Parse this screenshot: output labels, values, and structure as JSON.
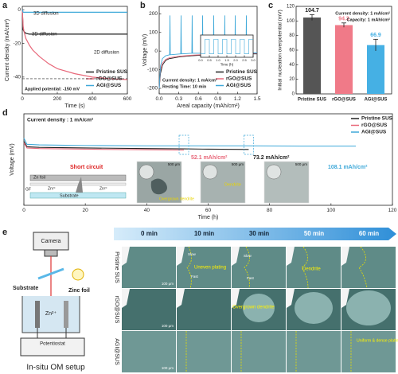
{
  "chart_data": [
    {
      "panel": "a",
      "type": "line",
      "x_label": "Time (s)",
      "y_label": "Current density (mA/cm²)",
      "x": [
        0,
        5,
        10,
        20,
        40,
        60,
        100,
        150,
        200,
        300,
        400,
        500,
        600
      ],
      "series": [
        {
          "name": "Pristine SUS",
          "color": "#222222",
          "values": [
            0,
            -12,
            -13,
            -14,
            -14.5,
            -14.5,
            -14.5,
            -14.5,
            -14.5,
            -14.5,
            -14.5,
            -14.5,
            -14.5
          ]
        },
        {
          "name": "rGO@SUS",
          "color": "#e8687a",
          "values": [
            0,
            -10,
            -13,
            -17,
            -21,
            -24,
            -28,
            -32,
            -35,
            -38,
            -40,
            -41,
            -41.5
          ]
        },
        {
          "name": "AGI@SUS",
          "color": "#3fa9d9",
          "values": [
            0,
            -1.5,
            -1.5,
            -1.5,
            -1.5,
            -1.5,
            -1.5,
            -1.5,
            -1.5,
            -1.5,
            -1.5,
            -1.5,
            -1.5
          ]
        }
      ],
      "xlim": [
        0,
        600
      ],
      "xticks": [
        0,
        200,
        400,
        600
      ],
      "ylim": [
        -50,
        2
      ],
      "yticks": [
        -40,
        -20,
        0
      ],
      "reference_line": -41,
      "legend_position": "lower right",
      "annotations": [
        "3D diffusion",
        "3D diffusion",
        "2D diffusion",
        "Applied potential: -150 mV"
      ]
    },
    {
      "panel": "b",
      "type": "line",
      "x_label": "Areal capacity (mAh/cm²)",
      "y_label": "Voltage (mV)",
      "x": [
        0,
        0.02,
        0.05,
        0.1,
        0.16,
        0.165,
        0.17,
        0.33,
        0.335,
        0.34,
        0.5,
        0.505,
        0.51,
        0.66,
        0.665,
        0.67,
        0.83,
        0.835,
        0.84,
        1.0,
        1.005,
        1.01,
        1.16,
        1.165,
        1.17,
        1.33,
        1.335,
        1.34,
        1.5
      ],
      "series": [
        {
          "name": "Pristine SUS",
          "color": "#222222",
          "values": [
            -200,
            -120,
            -75,
            -50,
            -40,
            -40,
            -40,
            -30,
            -30,
            -30,
            -25,
            -25,
            -25,
            -22,
            -22,
            -22,
            -20,
            -20,
            -20,
            -18,
            -18,
            -18,
            -17,
            -17,
            -17,
            -16,
            -16,
            -16,
            -15
          ]
        },
        {
          "name": "rGO@SUS",
          "color": "#e8687a",
          "values": [
            -200,
            -100,
            -65,
            -45,
            -35,
            -35,
            -35,
            -27,
            -27,
            -27,
            -22,
            -22,
            -22,
            -19,
            -19,
            -19,
            -17,
            -17,
            -17,
            -15,
            -15,
            -15,
            -14,
            -14,
            -14,
            -13,
            -13,
            -13,
            -12
          ]
        },
        {
          "name": "AGI@SUS",
          "color": "#3fa9d9",
          "values": [
            -200,
            -80,
            -40,
            -25,
            -20,
            190,
            -20,
            -15,
            190,
            -15,
            -12,
            190,
            -12,
            -12,
            190,
            -12,
            -10,
            190,
            -10,
            -10,
            190,
            -10,
            -10,
            190,
            -10,
            -10,
            190,
            -10,
            -10
          ]
        }
      ],
      "xlim": [
        0,
        1.5
      ],
      "xticks": [
        {
          "value": 0,
          "label": "0.0"
        },
        0.3,
        0.6,
        0.9,
        1.2,
        1.5
      ],
      "ylim": [
        -230,
        240
      ],
      "yticks": [
        -200,
        -100,
        0,
        100,
        200
      ],
      "legend_position": "lower right",
      "annotations": [
        "Current density: 1 mA/cm²",
        "Resting Time: 10 min"
      ]
    },
    {
      "type": "line",
      "x_label": "Time (h)",
      "x": [
        0,
        0.25,
        0.25,
        0.5,
        0.5,
        0.75,
        0.75,
        1,
        1,
        1.25,
        1.25,
        1.5,
        1.5,
        1.75,
        1.75,
        2,
        2,
        2.25,
        2.25,
        2.5,
        2.5,
        2.75,
        2.75,
        3
      ],
      "series": [
        {
          "color": "#3fa9d9",
          "values": [
            -20,
            -20,
            150,
            150,
            -20,
            -20,
            150,
            150,
            -20,
            -20,
            150,
            150,
            -20,
            -20,
            150,
            150,
            -20,
            -20,
            150,
            150,
            -20,
            -20,
            150,
            150
          ]
        }
      ],
      "xlim": [
        0,
        3
      ],
      "xticks": [
        {
          "value": 0,
          "label": "0.0"
        },
        0.5,
        {
          "value": 1,
          "label": "1.0"
        },
        1.5,
        {
          "value": 2,
          "label": "2.0"
        },
        2.5,
        {
          "value": 3,
          "label": "3.0"
        }
      ],
      "ylim": [
        -60,
        200
      ]
    },
    {
      "panel": "c",
      "type": "bar",
      "y_label": "Initial nucleation overpotential (mV)",
      "categories": [
        "Pristine SUS",
        "rGO@SUS",
        "AGI@SUS"
      ],
      "values": [
        104.7,
        94.3,
        66.9
      ],
      "errors": [
        4,
        3,
        8
      ],
      "colors": [
        "#555555",
        "#f07a88",
        "#45b0e4"
      ],
      "ylim": [
        0,
        120
      ],
      "yticks": [
        0,
        20,
        40,
        60,
        80,
        100,
        120
      ],
      "annotations": [
        "Current density: 1 mA/cm²",
        "Capacity: 1 mAh/cm²"
      ]
    },
    {
      "panel": "d",
      "type": "line",
      "x_label": "Time (h)",
      "y_label": "Voltage (mV)",
      "x": [
        0,
        1,
        5,
        20,
        40,
        52.1,
        60,
        73.2,
        90,
        108.1
      ],
      "series": [
        {
          "name": "Pristine SUS",
          "color": "#222222",
          "values": [
            60,
            42,
            40,
            38,
            36,
            35,
            34,
            33,
            null,
            null
          ]
        },
        {
          "name": "rGO@SUS",
          "color": "#e8687a",
          "values": [
            55,
            38,
            36,
            34,
            32,
            31,
            null,
            null,
            null,
            null
          ]
        },
        {
          "name": "AGI@SUS",
          "color": "#3fa9d9",
          "values": [
            70,
            50,
            48,
            46,
            45,
            45,
            45,
            45,
            44,
            44
          ]
        }
      ],
      "xlim": [
        0,
        120
      ],
      "xticks": [
        0,
        20,
        40,
        60,
        80,
        100,
        120
      ],
      "ylim": [
        -150,
        150
      ],
      "legend_position": "upper right",
      "annotations": [
        "Current density : 1 mA/cm²",
        "52.1 mAh/cm²",
        "73.2 mAh/cm²",
        "108.1 mAh/cm²",
        "Short circuit",
        "Zn foil",
        "GF",
        "Zn²⁺",
        "Substrate",
        "Overgrown dendrite",
        "Dendrite",
        "500 μm"
      ]
    }
  ],
  "panel_e": {
    "panel": "e",
    "setup": {
      "camera": "Camera",
      "substrate": "Substrate",
      "zinc_foil": "Zinc foil",
      "ion": "Zn²⁺",
      "potentiostat": "Potentiostat",
      "caption": "In-situ OM setup"
    },
    "times": [
      "0 min",
      "10 min",
      "30 min",
      "50 min",
      "60 min"
    ],
    "rows": [
      "Pristine SUS",
      "rGO@SUS",
      "AGI@SUS"
    ],
    "annotations": [
      "Uneven plating",
      "Dendrite",
      "Overgrown dendrite",
      "Uniform & dense plating",
      "Slow",
      "Fast"
    ],
    "scale_bar": "100 μm"
  }
}
